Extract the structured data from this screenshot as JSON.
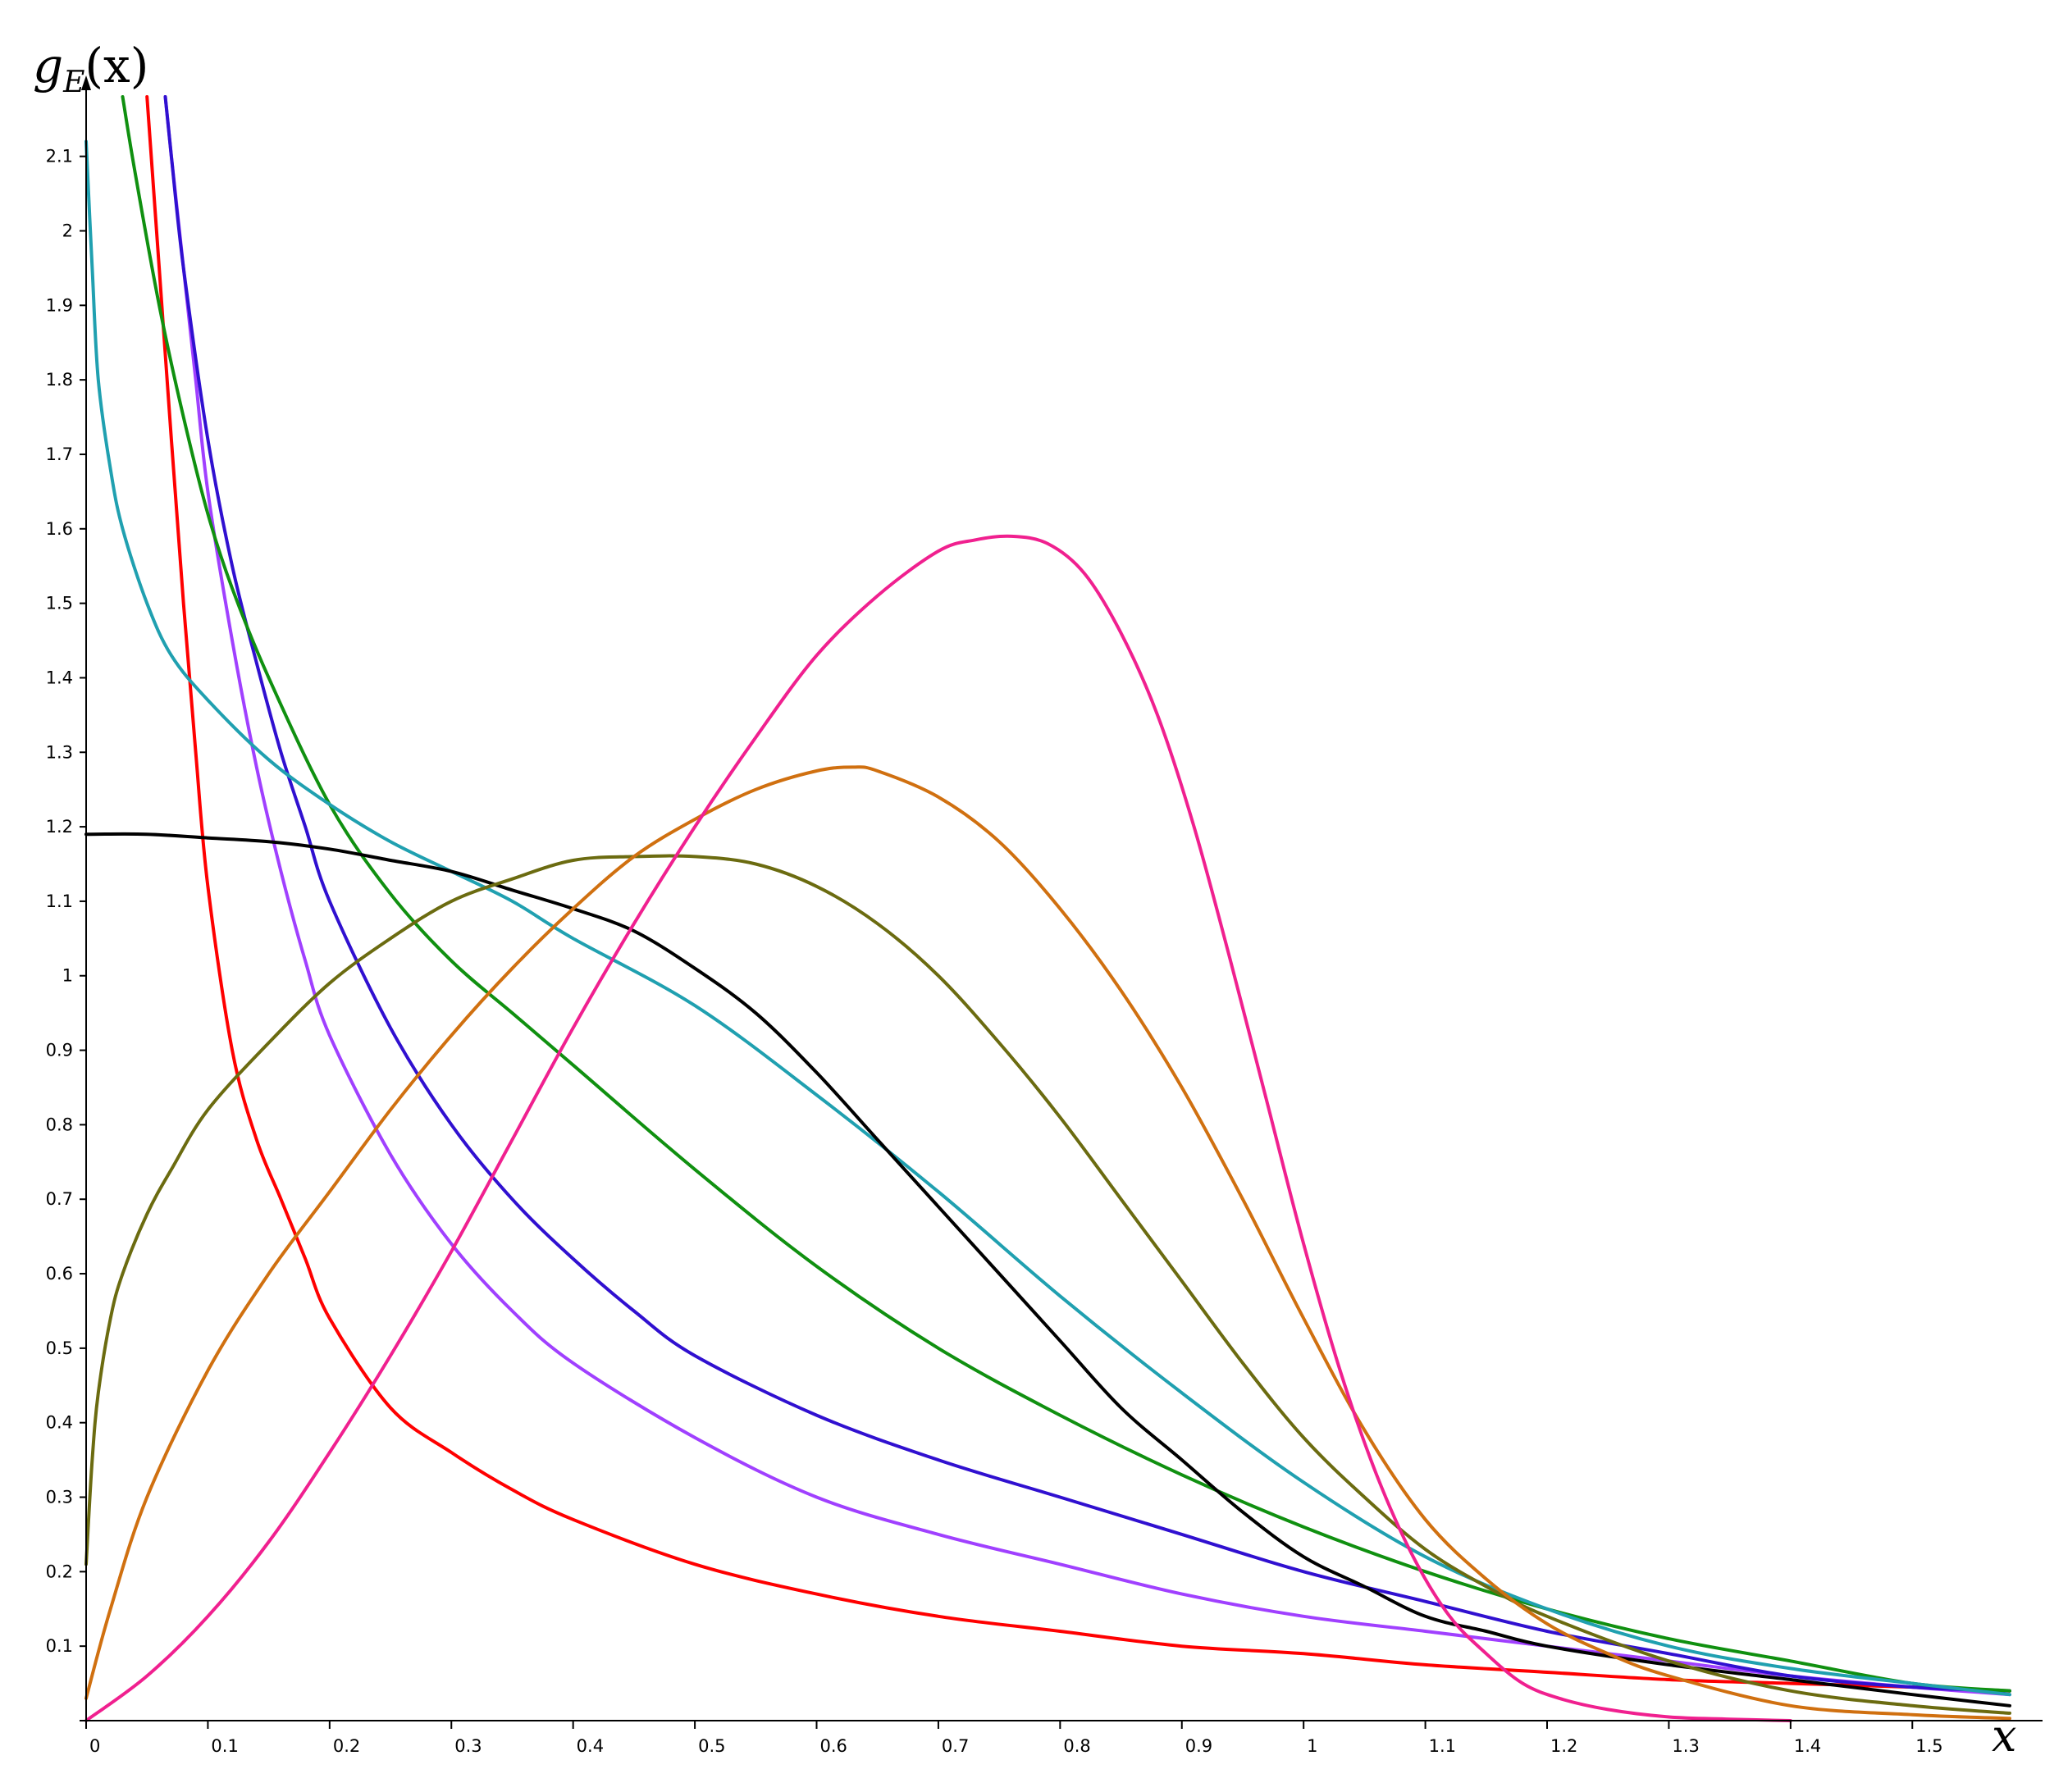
{
  "chart_data": {
    "type": "line",
    "title": "",
    "xlabel": "x",
    "ylabel_base": "g",
    "ylabel_sub": "E",
    "ylabel_arg": "(x)",
    "xlim": [
      0,
      1.58
    ],
    "ylim": [
      0,
      2.18
    ],
    "grid": false,
    "x_ticks": [
      0,
      0.1,
      0.2,
      0.3,
      0.4,
      0.5,
      0.6,
      0.7,
      0.8,
      0.9,
      1,
      1.1,
      1.2,
      1.3,
      1.4,
      1.5
    ],
    "x_tick_labels": [
      "0",
      "0.1",
      "0.2",
      "0.3",
      "0.4",
      "0.5",
      "0.6",
      "0.7",
      "0.8",
      "0.9",
      "1",
      "1.1",
      "1.2",
      "1.3",
      "1.4",
      "1.5"
    ],
    "y_ticks": [
      0.1,
      0.2,
      0.3,
      0.4,
      0.5,
      0.6,
      0.7,
      0.8,
      0.9,
      1,
      1.1,
      1.2,
      1.3,
      1.4,
      1.5,
      1.6,
      1.7,
      1.8,
      1.9,
      2,
      2.1
    ],
    "y_tick_labels": [
      "0.1",
      "0.2",
      "0.3",
      "0.4",
      "0.5",
      "0.6",
      "0.7",
      "0.8",
      "0.9",
      "1",
      "1.1",
      "1.2",
      "1.3",
      "1.4",
      "1.5",
      "1.6",
      "1.7",
      "1.8",
      "1.9",
      "2",
      "2.1"
    ],
    "series": [
      {
        "color": "#ff0000",
        "x": [
          0.05,
          0.06,
          0.07,
          0.08,
          0.09,
          0.1,
          0.12,
          0.14,
          0.16,
          0.18,
          0.2,
          0.25,
          0.3,
          0.35,
          0.4,
          0.5,
          0.6,
          0.7,
          0.8,
          0.9,
          1.0,
          1.1,
          1.2,
          1.3,
          1.4,
          1.5,
          1.58
        ],
        "y": [
          2.18,
          1.95,
          1.72,
          1.5,
          1.3,
          1.12,
          0.9,
          0.78,
          0.7,
          0.62,
          0.54,
          0.42,
          0.36,
          0.31,
          0.27,
          0.21,
          0.17,
          0.14,
          0.12,
          0.1,
          0.09,
          0.075,
          0.065,
          0.055,
          0.05,
          0.045,
          0.04
        ]
      },
      {
        "color": "#a040ff",
        "x": [
          0.065,
          0.07,
          0.08,
          0.09,
          0.1,
          0.12,
          0.14,
          0.16,
          0.18,
          0.2,
          0.25,
          0.3,
          0.35,
          0.4,
          0.5,
          0.6,
          0.7,
          0.8,
          0.9,
          1.0,
          1.1,
          1.2,
          1.3,
          1.4,
          1.5,
          1.58
        ],
        "y": [
          2.18,
          2.1,
          1.95,
          1.8,
          1.65,
          1.45,
          1.28,
          1.14,
          1.02,
          0.92,
          0.76,
          0.64,
          0.55,
          0.48,
          0.38,
          0.3,
          0.25,
          0.21,
          0.17,
          0.14,
          0.12,
          0.1,
          0.08,
          0.06,
          0.045,
          0.035
        ]
      },
      {
        "color": "#3010d0",
        "x": [
          0.065,
          0.07,
          0.08,
          0.1,
          0.12,
          0.14,
          0.16,
          0.18,
          0.2,
          0.25,
          0.3,
          0.35,
          0.4,
          0.45,
          0.5,
          0.6,
          0.7,
          0.8,
          0.9,
          1.0,
          1.1,
          1.2,
          1.3,
          1.4,
          1.5,
          1.58
        ],
        "y": [
          2.18,
          2.1,
          1.95,
          1.72,
          1.55,
          1.42,
          1.3,
          1.2,
          1.1,
          0.93,
          0.8,
          0.7,
          0.62,
          0.55,
          0.49,
          0.41,
          0.35,
          0.3,
          0.25,
          0.2,
          0.16,
          0.12,
          0.09,
          0.06,
          0.045,
          0.04
        ]
      },
      {
        "color": "#109010",
        "x": [
          0.03,
          0.04,
          0.06,
          0.08,
          0.1,
          0.12,
          0.15,
          0.2,
          0.25,
          0.3,
          0.35,
          0.4,
          0.5,
          0.6,
          0.7,
          0.8,
          0.9,
          1.0,
          1.1,
          1.2,
          1.3,
          1.4,
          1.5,
          1.58
        ],
        "y": [
          2.18,
          2.08,
          1.9,
          1.75,
          1.62,
          1.52,
          1.4,
          1.23,
          1.11,
          1.02,
          0.95,
          0.88,
          0.74,
          0.61,
          0.5,
          0.41,
          0.33,
          0.26,
          0.2,
          0.15,
          0.11,
          0.08,
          0.05,
          0.04
        ]
      },
      {
        "color": "#20a0b0",
        "x": [
          0.0,
          0.005,
          0.01,
          0.02,
          0.03,
          0.05,
          0.07,
          0.1,
          0.15,
          0.2,
          0.25,
          0.3,
          0.35,
          0.4,
          0.5,
          0.6,
          0.7,
          0.8,
          0.9,
          1.0,
          1.1,
          1.2,
          1.3,
          1.4,
          1.5,
          1.58
        ],
        "y": [
          2.12,
          1.95,
          1.8,
          1.68,
          1.6,
          1.5,
          1.43,
          1.37,
          1.29,
          1.23,
          1.18,
          1.14,
          1.1,
          1.05,
          0.96,
          0.84,
          0.71,
          0.57,
          0.44,
          0.32,
          0.22,
          0.15,
          0.1,
          0.07,
          0.05,
          0.035
        ]
      },
      {
        "color": "#000000",
        "x": [
          0.0,
          0.05,
          0.1,
          0.15,
          0.2,
          0.25,
          0.3,
          0.35,
          0.4,
          0.45,
          0.5,
          0.55,
          0.6,
          0.65,
          0.7,
          0.75,
          0.8,
          0.85,
          0.9,
          0.95,
          1.0,
          1.05,
          1.1,
          1.15,
          1.2,
          1.3,
          1.4,
          1.5,
          1.58
        ],
        "y": [
          1.19,
          1.19,
          1.185,
          1.18,
          1.17,
          1.155,
          1.14,
          1.115,
          1.09,
          1.06,
          1.01,
          0.95,
          0.87,
          0.78,
          0.69,
          0.6,
          0.51,
          0.42,
          0.35,
          0.28,
          0.22,
          0.18,
          0.14,
          0.12,
          0.1,
          0.075,
          0.055,
          0.035,
          0.02
        ]
      },
      {
        "color": "#6b6b10",
        "x": [
          0.0,
          0.005,
          0.01,
          0.02,
          0.03,
          0.05,
          0.07,
          0.1,
          0.15,
          0.2,
          0.25,
          0.3,
          0.35,
          0.4,
          0.45,
          0.5,
          0.55,
          0.6,
          0.65,
          0.7,
          0.75,
          0.8,
          0.85,
          0.9,
          0.95,
          1.0,
          1.05,
          1.1,
          1.15,
          1.2,
          1.3,
          1.4,
          1.5,
          1.58
        ],
        "y": [
          0.21,
          0.35,
          0.44,
          0.54,
          0.6,
          0.68,
          0.74,
          0.82,
          0.91,
          0.99,
          1.05,
          1.1,
          1.13,
          1.155,
          1.16,
          1.16,
          1.15,
          1.12,
          1.07,
          1.0,
          0.91,
          0.81,
          0.7,
          0.59,
          0.48,
          0.38,
          0.3,
          0.23,
          0.18,
          0.14,
          0.08,
          0.04,
          0.02,
          0.01
        ]
      },
      {
        "color": "#d07010",
        "x": [
          0.0,
          0.02,
          0.05,
          0.1,
          0.15,
          0.2,
          0.25,
          0.3,
          0.35,
          0.4,
          0.45,
          0.5,
          0.55,
          0.6,
          0.63,
          0.65,
          0.7,
          0.75,
          0.8,
          0.85,
          0.9,
          0.95,
          1.0,
          1.05,
          1.1,
          1.15,
          1.2,
          1.25,
          1.3,
          1.4,
          1.5,
          1.58
        ],
        "y": [
          0.03,
          0.15,
          0.3,
          0.47,
          0.6,
          0.71,
          0.82,
          0.92,
          1.01,
          1.09,
          1.16,
          1.21,
          1.25,
          1.275,
          1.28,
          1.275,
          1.24,
          1.18,
          1.09,
          0.98,
          0.85,
          0.7,
          0.54,
          0.39,
          0.27,
          0.19,
          0.13,
          0.09,
          0.06,
          0.02,
          0.008,
          0.003
        ]
      },
      {
        "color": "#f0208f",
        "x": [
          0.0,
          0.05,
          0.1,
          0.15,
          0.2,
          0.25,
          0.3,
          0.35,
          0.4,
          0.45,
          0.5,
          0.55,
          0.6,
          0.65,
          0.7,
          0.73,
          0.76,
          0.79,
          0.82,
          0.85,
          0.88,
          0.91,
          0.94,
          0.97,
          1.0,
          1.03,
          1.06,
          1.09,
          1.12,
          1.15,
          1.18,
          1.21,
          1.25,
          1.3,
          1.35,
          1.4
        ],
        "y": [
          0.0,
          0.06,
          0.14,
          0.24,
          0.36,
          0.49,
          0.63,
          0.78,
          0.93,
          1.07,
          1.2,
          1.32,
          1.43,
          1.51,
          1.57,
          1.585,
          1.59,
          1.58,
          1.54,
          1.46,
          1.35,
          1.2,
          1.02,
          0.83,
          0.64,
          0.47,
          0.33,
          0.22,
          0.14,
          0.09,
          0.05,
          0.03,
          0.015,
          0.005,
          0.002,
          0.0
        ]
      }
    ]
  }
}
